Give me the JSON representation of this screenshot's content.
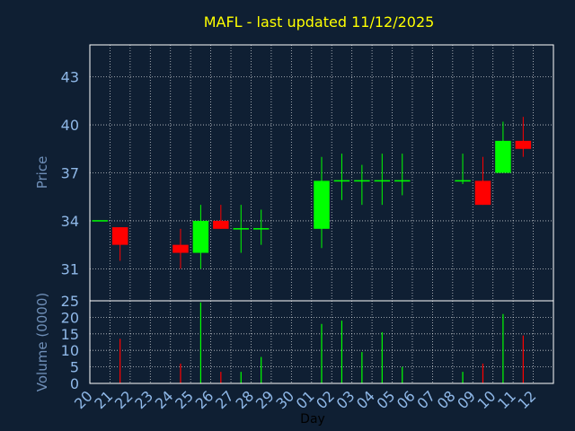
{
  "chart_data": {
    "type": "candlestick",
    "title": "MAFL - last updated 11/12/2025",
    "price_axis": {
      "label": "Price",
      "ticks": [
        "31",
        "34",
        "37",
        "40",
        "43"
      ],
      "tick_values": [
        31,
        34,
        37,
        40,
        43
      ],
      "ylim": [
        29.0,
        45.0
      ]
    },
    "volume_axis": {
      "label": "Volume (0000)",
      "ticks": [
        "0",
        "5",
        "10",
        "15",
        "20",
        "25"
      ],
      "tick_values": [
        0,
        5,
        10,
        15,
        20,
        25
      ],
      "ylim": [
        0,
        25
      ]
    },
    "x_axis": {
      "label": "Day",
      "ticks": [
        "20",
        "21",
        "22",
        "23",
        "24",
        "25",
        "26",
        "27",
        "28",
        "29",
        "30",
        "01",
        "02",
        "03",
        "04",
        "05",
        "06",
        "07",
        "08",
        "09",
        "10",
        "11",
        "12"
      ]
    },
    "grid": true,
    "colors": {
      "up": "#00ff00",
      "down": "#ff0000",
      "title": "#ffff00",
      "background": "#0f1f33"
    },
    "candles": [
      {
        "day": "20",
        "open": 34.0,
        "close": 34.0,
        "high": 34.0,
        "low": 34.0
      },
      {
        "day": "21",
        "open": 33.6,
        "close": 32.5,
        "high": 33.6,
        "low": 31.5
      },
      {
        "day": "24",
        "open": 32.5,
        "close": 32.0,
        "high": 33.5,
        "low": 31.0
      },
      {
        "day": "25",
        "open": 32.0,
        "close": 34.0,
        "high": 35.0,
        "low": 31.0
      },
      {
        "day": "26",
        "open": 34.0,
        "close": 33.5,
        "high": 35.0,
        "low": 33.5
      },
      {
        "day": "27",
        "open": 33.5,
        "close": 33.5,
        "high": 35.0,
        "low": 32.0
      },
      {
        "day": "28",
        "open": 33.5,
        "close": 33.5,
        "high": 34.7,
        "low": 32.5
      },
      {
        "day": "01",
        "open": 33.5,
        "close": 36.5,
        "high": 38.0,
        "low": 32.3
      },
      {
        "day": "02",
        "open": 36.5,
        "close": 36.5,
        "high": 38.2,
        "low": 35.3
      },
      {
        "day": "03",
        "open": 36.5,
        "close": 36.5,
        "high": 37.5,
        "low": 35.0
      },
      {
        "day": "04",
        "open": 36.5,
        "close": 36.5,
        "high": 38.2,
        "low": 35.0
      },
      {
        "day": "05",
        "open": 36.5,
        "close": 36.5,
        "high": 38.2,
        "low": 35.6
      },
      {
        "day": "08",
        "open": 36.5,
        "close": 36.5,
        "high": 38.2,
        "low": 36.3
      },
      {
        "day": "09",
        "open": 36.5,
        "close": 35.0,
        "high": 38.0,
        "low": 35.0
      },
      {
        "day": "10",
        "open": 37.0,
        "close": 39.0,
        "high": 40.2,
        "low": 37.0
      },
      {
        "day": "11",
        "open": 39.0,
        "close": 38.5,
        "high": 40.5,
        "low": 38.0
      }
    ],
    "volume": [
      {
        "day": "21",
        "value": 13.5,
        "direction": "down"
      },
      {
        "day": "24",
        "value": 6.0,
        "direction": "down"
      },
      {
        "day": "25",
        "value": 24.5,
        "direction": "up"
      },
      {
        "day": "26",
        "value": 3.5,
        "direction": "down"
      },
      {
        "day": "27",
        "value": 3.5,
        "direction": "up"
      },
      {
        "day": "28",
        "value": 8.0,
        "direction": "up"
      },
      {
        "day": "01",
        "value": 18.0,
        "direction": "up"
      },
      {
        "day": "02",
        "value": 19.0,
        "direction": "up"
      },
      {
        "day": "03",
        "value": 9.5,
        "direction": "up"
      },
      {
        "day": "04",
        "value": 15.5,
        "direction": "up"
      },
      {
        "day": "05",
        "value": 5.0,
        "direction": "up"
      },
      {
        "day": "08",
        "value": 3.5,
        "direction": "up"
      },
      {
        "day": "09",
        "value": 6.0,
        "direction": "down"
      },
      {
        "day": "10",
        "value": 21.0,
        "direction": "up"
      },
      {
        "day": "11",
        "value": 14.5,
        "direction": "down"
      }
    ]
  }
}
